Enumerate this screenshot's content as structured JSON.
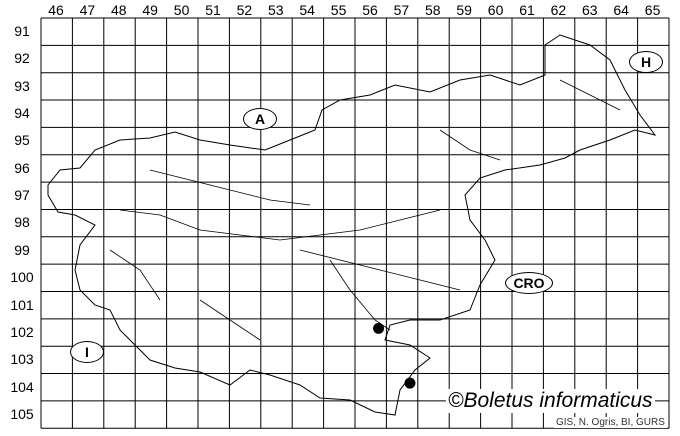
{
  "columns": [
    "46",
    "47",
    "48",
    "49",
    "50",
    "51",
    "52",
    "53",
    "54",
    "55",
    "56",
    "57",
    "58",
    "59",
    "60",
    "61",
    "62",
    "63",
    "64",
    "65"
  ],
  "rows": [
    "91",
    "92",
    "93",
    "94",
    "95",
    "96",
    "97",
    "98",
    "99",
    "100",
    "101",
    "102",
    "103",
    "104",
    "105"
  ],
  "countries": [
    {
      "id": "A",
      "label": "A"
    },
    {
      "id": "H",
      "label": "H"
    },
    {
      "id": "CRO",
      "label": "CRO"
    },
    {
      "id": "I",
      "label": "I"
    }
  ],
  "records": [
    {
      "col": 56,
      "row": 102
    },
    {
      "col": 57,
      "row": 104
    }
  ],
  "copyright": "©Boletus informaticus",
  "credit": "GIS, N. Ogris, BI, GURS",
  "colors": {
    "lines": "#000000",
    "dots": "#000000",
    "background": "#ffffff"
  }
}
